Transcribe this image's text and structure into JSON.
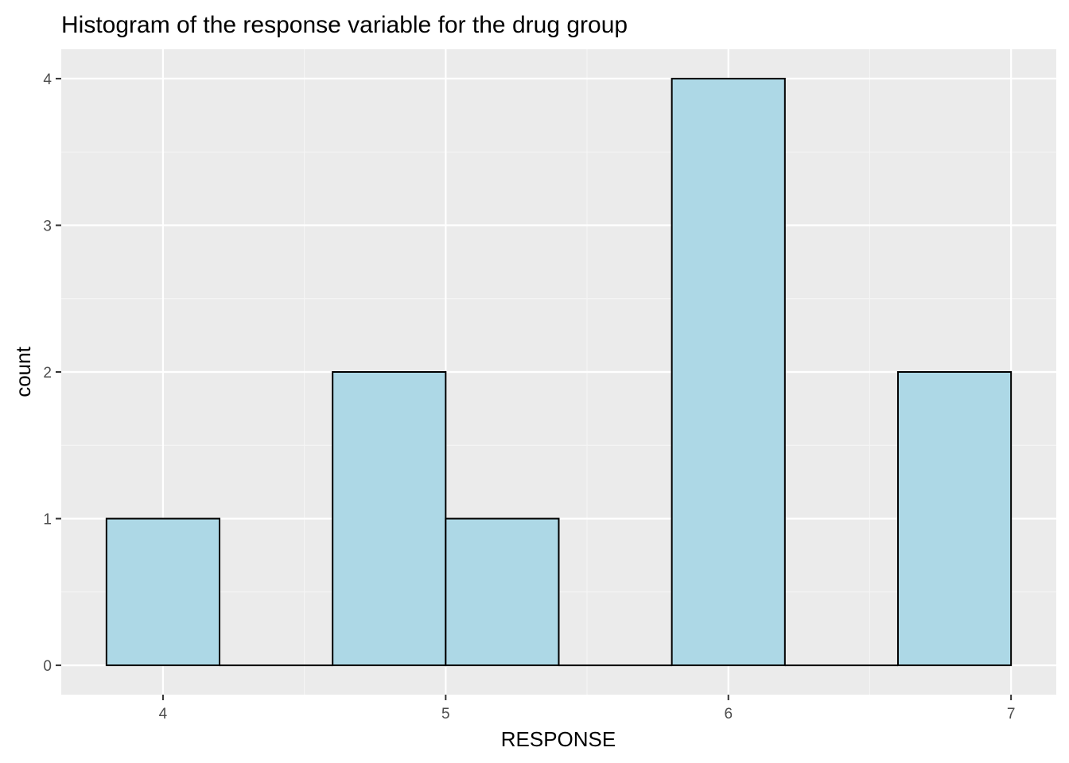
{
  "chart_data": {
    "type": "bar",
    "subtype": "histogram",
    "title": "Histogram of the response variable for the drug group",
    "xlabel": "RESPONSE",
    "ylabel": "count",
    "xlim": [
      3.64,
      7.16
    ],
    "ylim": [
      -0.2,
      4.2
    ],
    "xticks": [
      4,
      5,
      6,
      7
    ],
    "yticks": [
      0,
      1,
      2,
      3,
      4
    ],
    "bin_width": 0.4,
    "bins": [
      {
        "x_start": 3.8,
        "x_end": 4.2,
        "count": 1
      },
      {
        "x_start": 4.2,
        "x_end": 4.6,
        "count": 0
      },
      {
        "x_start": 4.6,
        "x_end": 5.0,
        "count": 2
      },
      {
        "x_start": 5.0,
        "x_end": 5.4,
        "count": 1
      },
      {
        "x_start": 5.4,
        "x_end": 5.8,
        "count": 0
      },
      {
        "x_start": 5.8,
        "x_end": 6.2,
        "count": 4
      },
      {
        "x_start": 6.2,
        "x_end": 6.6,
        "count": 0
      },
      {
        "x_start": 6.6,
        "x_end": 7.0,
        "count": 2
      }
    ],
    "grid": true,
    "colors": {
      "panel_background": "#EBEBEB",
      "grid_major": "#FFFFFF",
      "grid_minor": "#F5F5F5",
      "bar_fill": "#ADD8E6",
      "bar_outline": "#000000",
      "tick_text": "#4D4D4D",
      "tick_mark": "#333333"
    }
  }
}
